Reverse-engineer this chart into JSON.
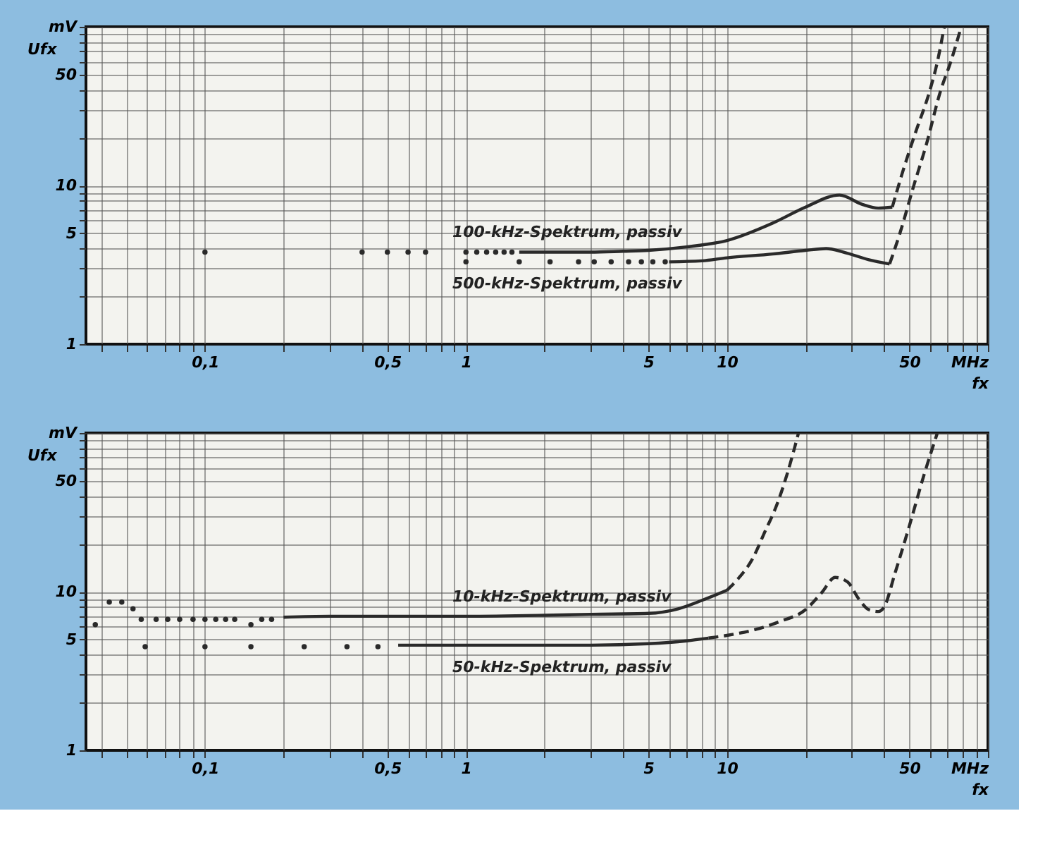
{
  "chart_data": [
    {
      "type": "line",
      "ylabel": "Ufx",
      "xlabel": "fx",
      "log": "xy",
      "grid": true,
      "xlim": [
        0.035,
        100
      ],
      "ylim": [
        1,
        100
      ],
      "xticks": [
        {
          "value": 0.04,
          "label": null
        },
        {
          "value": 0.05,
          "label": null
        },
        {
          "value": 0.06,
          "label": null
        },
        {
          "value": 0.07,
          "label": null
        },
        {
          "value": 0.08,
          "label": null
        },
        {
          "value": 0.09,
          "label": null
        },
        {
          "value": 0.1,
          "label": "0,1"
        },
        {
          "value": 0.2,
          "label": null
        },
        {
          "value": 0.3,
          "label": null
        },
        {
          "value": 0.4,
          "label": null
        },
        {
          "value": 0.5,
          "label": "0,5"
        },
        {
          "value": 0.6,
          "label": null
        },
        {
          "value": 0.7,
          "label": null
        },
        {
          "value": 0.8,
          "label": null
        },
        {
          "value": 0.9,
          "label": null
        },
        1,
        {
          "value": 2,
          "label": null
        },
        {
          "value": 3,
          "label": null
        },
        {
          "value": 4,
          "label": null
        },
        5,
        {
          "value": 6,
          "label": null
        },
        {
          "value": 7,
          "label": null
        },
        {
          "value": 8,
          "label": null
        },
        {
          "value": 9,
          "label": null
        },
        10,
        {
          "value": 20,
          "label": null
        },
        {
          "value": 30,
          "label": null
        },
        {
          "value": 40,
          "label": null
        },
        50,
        {
          "value": 60,
          "label": null
        },
        {
          "value": 70,
          "label": null
        },
        {
          "value": 80,
          "label": null
        },
        {
          "value": 90,
          "label": null
        },
        {
          "value": 100,
          "label": "MHz"
        }
      ],
      "yticks": [
        1,
        {
          "value": 2,
          "label": null
        },
        {
          "value": 3,
          "label": null
        },
        {
          "value": 4,
          "label": null
        },
        5,
        {
          "value": 6,
          "label": null
        },
        {
          "value": 7,
          "label": null
        },
        {
          "value": 8,
          "label": null
        },
        {
          "value": 9,
          "label": null
        },
        10,
        {
          "value": 20,
          "label": null
        },
        {
          "value": 30,
          "label": null
        },
        {
          "value": 40,
          "label": null
        },
        50,
        {
          "value": 60,
          "label": null
        },
        {
          "value": 70,
          "label": null
        },
        {
          "value": 80,
          "label": null
        },
        {
          "value": 90,
          "label": null
        },
        {
          "value": 100,
          "label": "mV"
        }
      ],
      "series": [
        {
          "type": "scatter",
          "marker": "circle",
          "color": "#2a2a2a",
          "x": [
            0.1,
            0.4,
            0.5,
            0.6,
            0.7,
            1.0,
            1.1,
            1.2,
            1.3,
            1.4,
            1.5
          ],
          "values": [
            3.8,
            3.8,
            3.8,
            3.8,
            3.8,
            3.8,
            3.8,
            3.8,
            3.8,
            3.8,
            3.8
          ]
        },
        {
          "name": "100-kHz-Spektrum, passiv",
          "line_style": "solid",
          "color": "#2a2a2a",
          "x": [
            1.6,
            2,
            2.5,
            3,
            4,
            5,
            7,
            10,
            15,
            20,
            27,
            33,
            38,
            43
          ],
          "values": [
            3.8,
            3.8,
            3.8,
            3.8,
            3.85,
            3.9,
            4.1,
            4.5,
            5.8,
            7.3,
            8.7,
            7.6,
            7.2,
            7.3
          ]
        },
        {
          "line_style": "dashed",
          "color": "#2a2a2a",
          "x": [
            43,
            47,
            53,
            60,
            64,
            68
          ],
          "values": [
            7.3,
            12,
            22,
            40,
            60,
            100
          ]
        },
        {
          "type": "scatter",
          "marker": "circle",
          "color": "#2a2a2a",
          "x": [
            1.0,
            1.6,
            2.1,
            2.7,
            3.1,
            3.6,
            4.2,
            4.7,
            5.2,
            5.8
          ],
          "values": [
            3.3,
            3.3,
            3.3,
            3.3,
            3.3,
            3.3,
            3.3,
            3.3,
            3.3,
            3.3
          ]
        },
        {
          "name": "500-kHz-Spektrum, passiv",
          "line_style": "solid",
          "color": "#2a2a2a",
          "x": [
            6,
            8,
            10,
            15,
            20,
            24,
            28,
            35,
            42
          ],
          "values": [
            3.3,
            3.35,
            3.5,
            3.7,
            3.9,
            4.0,
            3.8,
            3.4,
            3.2
          ]
        },
        {
          "line_style": "dashed",
          "color": "#2a2a2a",
          "x": [
            42,
            46,
            52,
            58,
            66,
            72,
            79
          ],
          "values": [
            3.2,
            5,
            10,
            18,
            40,
            60,
            100
          ]
        }
      ]
    },
    {
      "type": "line",
      "ylabel": "Ufx",
      "xlabel": "fx",
      "log": "xy",
      "grid": true,
      "xlim": [
        0.035,
        100
      ],
      "ylim": [
        1,
        100
      ],
      "xticks": [
        {
          "value": 0.04,
          "label": null
        },
        {
          "value": 0.05,
          "label": null
        },
        {
          "value": 0.06,
          "label": null
        },
        {
          "value": 0.07,
          "label": null
        },
        {
          "value": 0.08,
          "label": null
        },
        {
          "value": 0.09,
          "label": null
        },
        {
          "value": 0.1,
          "label": "0,1"
        },
        {
          "value": 0.2,
          "label": null
        },
        {
          "value": 0.3,
          "label": null
        },
        {
          "value": 0.4,
          "label": null
        },
        {
          "value": 0.5,
          "label": "0,5"
        },
        {
          "value": 0.6,
          "label": null
        },
        {
          "value": 0.7,
          "label": null
        },
        {
          "value": 0.8,
          "label": null
        },
        {
          "value": 0.9,
          "label": null
        },
        1,
        {
          "value": 2,
          "label": null
        },
        {
          "value": 3,
          "label": null
        },
        {
          "value": 4,
          "label": null
        },
        5,
        {
          "value": 6,
          "label": null
        },
        {
          "value": 7,
          "label": null
        },
        {
          "value": 8,
          "label": null
        },
        {
          "value": 9,
          "label": null
        },
        10,
        {
          "value": 20,
          "label": null
        },
        {
          "value": 30,
          "label": null
        },
        {
          "value": 40,
          "label": null
        },
        50,
        {
          "value": 60,
          "label": null
        },
        {
          "value": 70,
          "label": null
        },
        {
          "value": 80,
          "label": null
        },
        {
          "value": 90,
          "label": null
        },
        {
          "value": 100,
          "label": "MHz"
        }
      ],
      "yticks": [
        1,
        {
          "value": 2,
          "label": null
        },
        {
          "value": 3,
          "label": null
        },
        {
          "value": 4,
          "label": null
        },
        5,
        {
          "value": 6,
          "label": null
        },
        {
          "value": 7,
          "label": null
        },
        {
          "value": 8,
          "label": null
        },
        {
          "value": 9,
          "label": null
        },
        10,
        {
          "value": 20,
          "label": null
        },
        {
          "value": 30,
          "label": null
        },
        {
          "value": 40,
          "label": null
        },
        50,
        {
          "value": 60,
          "label": null
        },
        {
          "value": 70,
          "label": null
        },
        {
          "value": 80,
          "label": null
        },
        {
          "value": 90,
          "label": null
        },
        {
          "value": 100,
          "label": "mV"
        }
      ],
      "series": [
        {
          "type": "scatter",
          "marker": "circle",
          "color": "#2a2a2a",
          "x": [
            0.038,
            0.043,
            0.048,
            0.053,
            0.057,
            0.065,
            0.072,
            0.08,
            0.09,
            0.1,
            0.11,
            0.12,
            0.13,
            0.15,
            0.165,
            0.18
          ],
          "values": [
            6.2,
            8.6,
            8.6,
            7.8,
            6.7,
            6.7,
            6.7,
            6.7,
            6.7,
            6.7,
            6.7,
            6.7,
            6.7,
            6.2,
            6.7,
            6.7
          ]
        },
        {
          "name": "10-kHz-Spektrum, passiv",
          "line_style": "solid",
          "color": "#2a2a2a",
          "x": [
            0.2,
            0.3,
            0.5,
            1,
            2,
            3,
            5,
            6.5,
            8,
            10
          ],
          "values": [
            6.9,
            7.0,
            7.0,
            7.0,
            7.1,
            7.2,
            7.3,
            7.8,
            8.8,
            10.2
          ]
        },
        {
          "line_style": "dashed",
          "color": "#2a2a2a",
          "x": [
            10,
            11,
            12.5,
            14,
            15.5,
            17,
            18.8
          ],
          "values": [
            10.2,
            12,
            16,
            24,
            35,
            55,
            100
          ]
        },
        {
          "type": "scatter",
          "marker": "circle",
          "color": "#2a2a2a",
          "x": [
            0.059,
            0.1,
            0.15,
            0.24,
            0.35,
            0.46
          ],
          "values": [
            4.5,
            4.5,
            4.5,
            4.5,
            4.5,
            4.5
          ]
        },
        {
          "name": "50-kHz-Spektrum, passiv",
          "line_style": "solid",
          "color": "#2a2a2a",
          "x": [
            0.55,
            1,
            2,
            3,
            5,
            7,
            8.5
          ],
          "values": [
            4.6,
            4.6,
            4.6,
            4.6,
            4.7,
            4.9,
            5.1
          ]
        },
        {
          "line_style": "dashed",
          "color": "#2a2a2a",
          "x": [
            8.5,
            10,
            13,
            16,
            20,
            23,
            26,
            29,
            32,
            35,
            38,
            40,
            44,
            50,
            57,
            64
          ],
          "values": [
            5.1,
            5.3,
            5.8,
            6.5,
            7.7,
            9.8,
            12.3,
            11.5,
            9,
            7.7,
            7.5,
            8,
            13,
            26,
            55,
            100
          ]
        }
      ]
    }
  ]
}
